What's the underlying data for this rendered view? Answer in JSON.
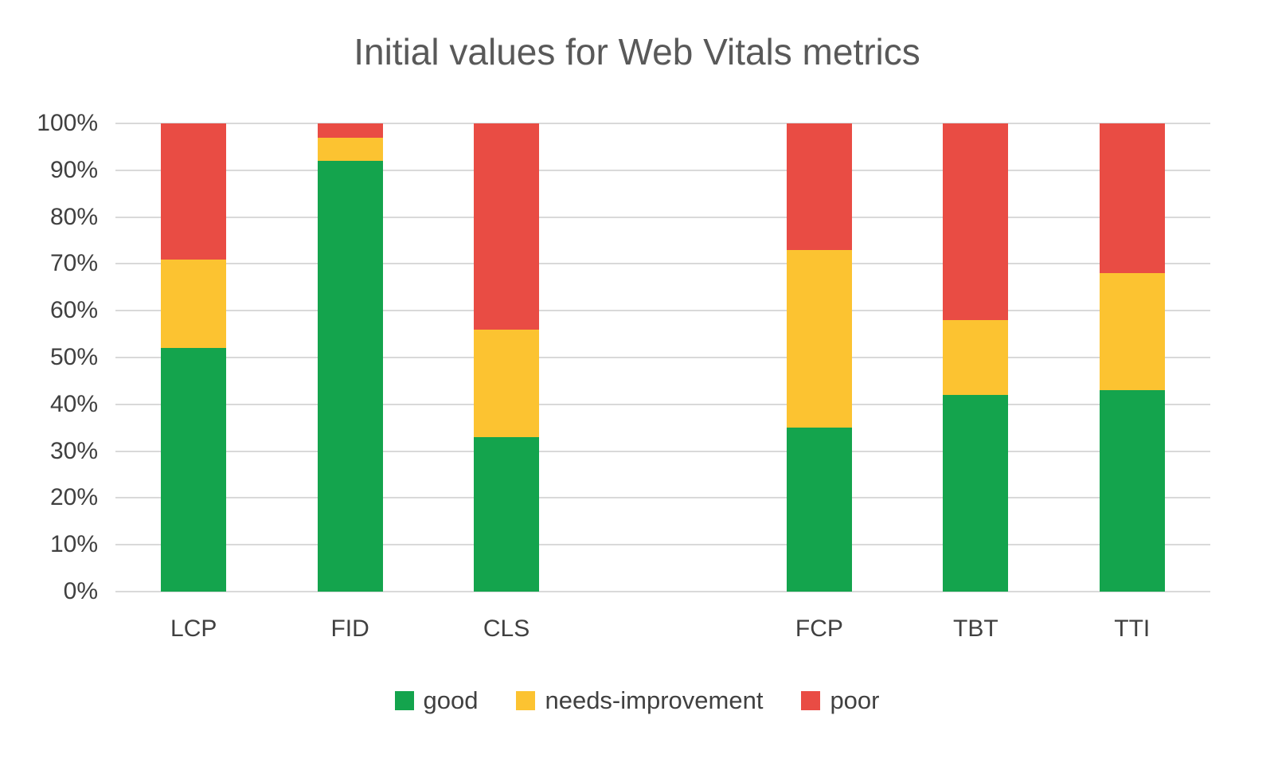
{
  "chart_data": {
    "type": "bar",
    "stacked": true,
    "title": "Initial values for Web Vitals metrics",
    "categories": [
      "LCP",
      "FID",
      "CLS",
      "",
      "FCP",
      "TBT",
      "TTI"
    ],
    "series": [
      {
        "name": "good",
        "color": "#14a44d",
        "values": [
          52,
          92,
          33,
          null,
          35,
          42,
          43
        ]
      },
      {
        "name": "needs-improvement",
        "color": "#fcc331",
        "values": [
          19,
          5,
          23,
          null,
          38,
          16,
          25
        ]
      },
      {
        "name": "poor",
        "color": "#e94c44",
        "values": [
          29,
          3,
          44,
          null,
          27,
          42,
          32
        ]
      }
    ],
    "ylabel": "",
    "xlabel": "",
    "ylim": [
      0,
      100
    ],
    "ytick_step": 10,
    "ytick_suffix": "%",
    "grid": true,
    "legend_position": "bottom",
    "colors": {
      "grid": "#d9d9d9",
      "title_text": "#595959",
      "axis_text": "#404040"
    }
  }
}
